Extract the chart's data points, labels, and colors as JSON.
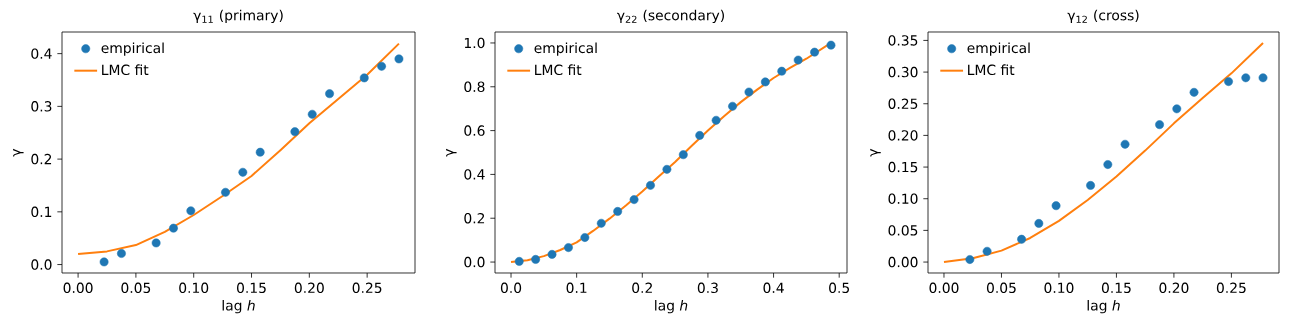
{
  "chart_data": [
    {
      "type": "scatter",
      "title": "γ$_{11}$ (primary)",
      "xlabel": "lag *h*",
      "ylabel": "γ",
      "legend": "top left",
      "xlim": [
        -0.0139,
        0.2914
      ],
      "ylim": [
        -0.016,
        0.441
      ],
      "xticks": [
        {
          "value": 0,
          "label": "0.00"
        },
        {
          "value": 0.05,
          "label": "0.05"
        },
        {
          "value": 0.1,
          "label": "0.10"
        },
        {
          "value": 0.15,
          "label": "0.15"
        },
        {
          "value": 0.2,
          "label": "0.20"
        },
        {
          "value": 0.25,
          "label": "0.25"
        }
      ],
      "yticks": [
        {
          "value": 0,
          "label": "0.0"
        },
        0.1,
        0.2,
        0.3,
        0.4
      ],
      "series": [
        {
          "name": "empirical",
          "marker": "circle",
          "color": "#1f77b4",
          "x": [
            0.0225,
            0.0375,
            0.0675,
            0.0825,
            0.0975,
            0.1275,
            0.1425,
            0.1575,
            0.1875,
            0.2025,
            0.2175,
            0.2475,
            0.2625,
            0.2775
          ],
          "values": [
            0.005,
            0.021,
            0.041,
            0.069,
            0.102,
            0.137,
            0.175,
            0.213,
            0.252,
            0.285,
            0.324,
            0.354,
            0.376,
            0.39
          ]
        },
        {
          "name": "LMC fit",
          "type": "line",
          "color": "#ff7f0e",
          "x": [
            0,
            0.025,
            0.05,
            0.075,
            0.1,
            0.125,
            0.15,
            0.175,
            0.2,
            0.225,
            0.25,
            0.2775
          ],
          "values": [
            0.02,
            0.025,
            0.037,
            0.062,
            0.094,
            0.13,
            0.168,
            0.217,
            0.268,
            0.314,
            0.36,
            0.419
          ]
        }
      ]
    },
    {
      "type": "scatter",
      "title": "γ$_{22}$ (secondary)",
      "xlabel": "lag *h*",
      "ylabel": "γ",
      "legend": "top left",
      "xlim": [
        -0.0244,
        0.5119
      ],
      "ylim": [
        -0.05,
        1.05
      ],
      "xticks": [
        {
          "value": 0,
          "label": "0.0"
        },
        0.1,
        0.2,
        0.3,
        0.4,
        0.5
      ],
      "yticks": [
        {
          "value": 0,
          "label": "0.0"
        },
        0.2,
        0.4,
        0.6,
        0.8,
        {
          "value": 1,
          "label": "1.0"
        }
      ],
      "series": [
        {
          "name": "empirical",
          "marker": "circle",
          "color": "#1f77b4",
          "x": [
            0.0125,
            0.0375,
            0.0625,
            0.0875,
            0.1125,
            0.1375,
            0.1625,
            0.1875,
            0.2125,
            0.2375,
            0.2625,
            0.2875,
            0.3125,
            0.3375,
            0.3625,
            0.3875,
            0.4125,
            0.4375,
            0.4625,
            0.4875
          ],
          "values": [
            0.003,
            0.012,
            0.035,
            0.066,
            0.112,
            0.177,
            0.231,
            0.285,
            0.35,
            0.423,
            0.49,
            0.578,
            0.647,
            0.711,
            0.776,
            0.822,
            0.871,
            0.922,
            0.958,
            0.99
          ]
        },
        {
          "name": "LMC fit",
          "type": "line",
          "color": "#ff7f0e",
          "x": [
            0,
            0.025,
            0.05,
            0.075,
            0.1,
            0.125,
            0.15,
            0.175,
            0.2,
            0.225,
            0.25,
            0.275,
            0.3,
            0.325,
            0.35,
            0.375,
            0.4,
            0.425,
            0.45,
            0.4875
          ],
          "values": [
            0,
            0.008,
            0.027,
            0.055,
            0.09,
            0.142,
            0.198,
            0.258,
            0.322,
            0.39,
            0.457,
            0.53,
            0.6,
            0.667,
            0.73,
            0.787,
            0.84,
            0.886,
            0.928,
            1.0
          ]
        }
      ]
    },
    {
      "type": "scatter",
      "title": "γ$_{12}$ (cross)",
      "xlabel": "lag *h*",
      "ylabel": "γ",
      "legend": "top left",
      "xlim": [
        -0.0139,
        0.2914
      ],
      "ylim": [
        -0.0173,
        0.3633
      ],
      "xticks": [
        {
          "value": 0,
          "label": "0.00"
        },
        {
          "value": 0.05,
          "label": "0.05"
        },
        {
          "value": 0.1,
          "label": "0.10"
        },
        {
          "value": 0.15,
          "label": "0.15"
        },
        {
          "value": 0.2,
          "label": "0.20"
        },
        {
          "value": 0.25,
          "label": "0.25"
        }
      ],
      "yticks": [
        {
          "value": 0,
          "label": "0.00"
        },
        {
          "value": 0.05,
          "label": "0.05"
        },
        {
          "value": 0.1,
          "label": "0.10"
        },
        {
          "value": 0.15,
          "label": "0.15"
        },
        {
          "value": 0.2,
          "label": "0.20"
        },
        {
          "value": 0.25,
          "label": "0.25"
        },
        {
          "value": 0.3,
          "label": "0.30"
        },
        {
          "value": 0.35,
          "label": "0.35"
        }
      ],
      "series": [
        {
          "name": "empirical",
          "marker": "circle",
          "color": "#1f77b4",
          "x": [
            0.0225,
            0.0375,
            0.0675,
            0.0825,
            0.0975,
            0.1275,
            0.1425,
            0.1575,
            0.1875,
            0.2025,
            0.2175,
            0.2475,
            0.2625,
            0.2775
          ],
          "values": [
            0.004,
            0.017,
            0.036,
            0.061,
            0.089,
            0.121,
            0.154,
            0.186,
            0.217,
            0.242,
            0.268,
            0.285,
            0.291,
            0.291
          ]
        },
        {
          "name": "LMC fit",
          "type": "line",
          "color": "#ff7f0e",
          "x": [
            0,
            0.025,
            0.05,
            0.075,
            0.1,
            0.125,
            0.15,
            0.175,
            0.2,
            0.225,
            0.25,
            0.2775
          ],
          "values": [
            0,
            0.006,
            0.018,
            0.038,
            0.065,
            0.098,
            0.135,
            0.176,
            0.219,
            0.259,
            0.298,
            0.346
          ]
        }
      ]
    }
  ]
}
